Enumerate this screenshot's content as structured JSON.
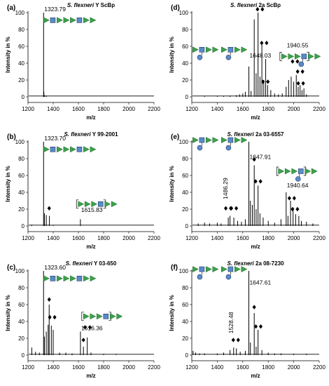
{
  "chart_data": [
    {
      "id": "a",
      "panel_label": "(a)",
      "title_italic": "S. flexneri",
      "title_rest": " Y ScBp",
      "type": "spectrum",
      "xlabel": "m/z",
      "ylabel": "Intensity in %",
      "xlim": [
        1200,
        2200
      ],
      "ylim": [
        0,
        100
      ],
      "xticks": [
        1200,
        1400,
        1600,
        1800,
        2000,
        2200
      ],
      "yticks": [
        0,
        20,
        40,
        60,
        80,
        100
      ],
      "peaks": [
        [
          1323.79,
          100
        ],
        [
          1326,
          6
        ],
        [
          1330,
          2
        ],
        [
          1345,
          1.5
        ]
      ],
      "labels": [
        {
          "text": "1323.79",
          "x": 1323.79,
          "y": 100
        }
      ],
      "diamonds": [],
      "glycans": [
        {
          "x": 1322,
          "y": 91,
          "units": 1,
          "kind": "Y"
        }
      ]
    },
    {
      "id": "b",
      "panel_label": "(b)",
      "title_italic": "S. flexneri",
      "title_rest": " Y 99-2001",
      "type": "spectrum",
      "xlabel": "m/z",
      "ylabel": "Intensity in %",
      "xlim": [
        1200,
        2200
      ],
      "ylim": [
        0,
        100
      ],
      "xticks": [
        1200,
        1400,
        1600,
        1800,
        2000,
        2200
      ],
      "yticks": [
        0,
        20,
        40,
        60,
        80,
        100
      ],
      "peaks": [
        [
          1323.7,
          100
        ],
        [
          1330,
          15
        ],
        [
          1345,
          13
        ],
        [
          1370,
          12
        ],
        [
          1615.83,
          8
        ],
        [
          1230,
          1.5
        ],
        [
          1400,
          1
        ]
      ],
      "labels": [
        {
          "text": "1323.70",
          "x": 1323.7,
          "y": 100
        },
        {
          "text": "1615.83",
          "x": 1615.83,
          "y": 15
        }
      ],
      "diamonds": [
        {
          "x": 1368,
          "y": 21,
          "n": 1
        }
      ],
      "glycans": [
        {
          "x": 1322,
          "y": 91,
          "units": 1,
          "kind": "Y"
        },
        {
          "x": 1568,
          "y": 26,
          "units": 1,
          "kind": "Ybr"
        }
      ]
    },
    {
      "id": "c",
      "panel_label": "(c)",
      "title_italic": "S. flexneri",
      "title_rest": " Y 03-650",
      "type": "spectrum",
      "xlabel": "m/z",
      "ylabel": "Intensity in %",
      "xlim": [
        1200,
        2200
      ],
      "ylim": [
        0,
        100
      ],
      "xticks": [
        1200,
        1400,
        1600,
        1800,
        2000,
        2200
      ],
      "yticks": [
        0,
        20,
        40,
        60,
        80,
        100
      ],
      "peaks": [
        [
          1323.6,
          100
        ],
        [
          1330,
          22
        ],
        [
          1345,
          28
        ],
        [
          1360,
          36
        ],
        [
          1368,
          60
        ],
        [
          1385,
          35
        ],
        [
          1400,
          30
        ],
        [
          1230,
          9
        ],
        [
          1260,
          4
        ],
        [
          1290,
          3
        ],
        [
          1450,
          3
        ],
        [
          1500,
          3
        ],
        [
          1550,
          2
        ],
        [
          1616.36,
          28
        ],
        [
          1640,
          10
        ],
        [
          1670,
          21
        ],
        [
          1700,
          3
        ],
        [
          1800,
          1.5
        ],
        [
          1900,
          1
        ]
      ],
      "labels": [
        {
          "text": "1323.60",
          "x": 1323.6,
          "y": 100
        },
        {
          "text": "1616.36",
          "x": 1616.36,
          "y": 28
        }
      ],
      "diamonds": [
        {
          "x": 1368,
          "y": 66,
          "n": 1
        },
        {
          "x": 1392,
          "y": 45,
          "n": 2
        },
        {
          "x": 1640,
          "y": 18,
          "n": 1
        },
        {
          "x": 1672,
          "y": 33,
          "n": 2
        }
      ],
      "glycans": [
        {
          "x": 1322,
          "y": 91,
          "units": 1,
          "kind": "Y"
        },
        {
          "x": 1610,
          "y": 46,
          "units": 1,
          "kind": "Ybr"
        }
      ]
    },
    {
      "id": "d",
      "panel_label": "(d)",
      "title_italic": "S. flexneri",
      "title_rest": " 2a ScBp",
      "type": "spectrum",
      "xlabel": "m/z",
      "ylabel": "Intensity in %",
      "xlim": [
        1200,
        2200
      ],
      "ylim": [
        0,
        100
      ],
      "xticks": [
        1200,
        1400,
        1600,
        1800,
        2000,
        2200
      ],
      "yticks": [
        0,
        20,
        40,
        60,
        80,
        100
      ],
      "peaks": [
        [
          1550,
          2
        ],
        [
          1575,
          3
        ],
        [
          1600,
          4
        ],
        [
          1620,
          6
        ],
        [
          1648.03,
          36
        ],
        [
          1665,
          7
        ],
        [
          1690,
          92
        ],
        [
          1705,
          28
        ],
        [
          1720,
          100
        ],
        [
          1735,
          24
        ],
        [
          1750,
          62
        ],
        [
          1765,
          20
        ],
        [
          1780,
          45
        ],
        [
          1795,
          14
        ],
        [
          1820,
          8
        ],
        [
          1850,
          4
        ],
        [
          1880,
          3
        ],
        [
          1910,
          4
        ],
        [
          1940.55,
          12
        ],
        [
          1960,
          20
        ],
        [
          1980,
          24
        ],
        [
          2000,
          18
        ],
        [
          2020,
          26
        ],
        [
          2035,
          12
        ],
        [
          2050,
          14
        ],
        [
          2065,
          8
        ],
        [
          2080,
          10
        ],
        [
          2100,
          3
        ],
        [
          1300,
          1
        ],
        [
          1400,
          1
        ],
        [
          1450,
          1
        ],
        [
          1500,
          1.5
        ]
      ],
      "labels": [
        {
          "text": "1648.03",
          "x": 1648.03,
          "y": 45
        },
        {
          "text": "1940.55",
          "x": 1940.55,
          "y": 57
        }
      ],
      "diamonds": [
        {
          "x": 1735,
          "y": 104,
          "n": 2
        },
        {
          "x": 1768,
          "y": 64,
          "n": 2
        },
        {
          "x": 1778,
          "y": 18,
          "n": 2
        },
        {
          "x": 2010,
          "y": 42,
          "n": 2
        },
        {
          "x": 2050,
          "y": 30,
          "n": 2
        },
        {
          "x": 2055,
          "y": 16,
          "n": 2
        }
      ],
      "glycans": [
        {
          "x": 1205,
          "y": 56,
          "units": 2,
          "kind": "2a"
        },
        {
          "x": 1875,
          "y": 48,
          "units": 1,
          "kind": "2abr"
        }
      ]
    },
    {
      "id": "e",
      "panel_label": "(e)",
      "title_italic": "S. flexneri",
      "title_rest": " 2a 03-6557",
      "type": "spectrum",
      "xlabel": "m/z",
      "ylabel": "Intensity in %",
      "xlim": [
        1200,
        2200
      ],
      "ylim": [
        0,
        100
      ],
      "xticks": [
        1200,
        1400,
        1600,
        1800,
        2000,
        2200
      ],
      "yticks": [
        0,
        20,
        40,
        60,
        80,
        100
      ],
      "peaks": [
        [
          1250,
          3
        ],
        [
          1300,
          4
        ],
        [
          1340,
          3
        ],
        [
          1400,
          4
        ],
        [
          1430,
          3
        ],
        [
          1486.29,
          10
        ],
        [
          1500,
          12
        ],
        [
          1530,
          10
        ],
        [
          1560,
          6
        ],
        [
          1590,
          5
        ],
        [
          1620,
          8
        ],
        [
          1647.91,
          100
        ],
        [
          1660,
          30
        ],
        [
          1675,
          25
        ],
        [
          1690,
          72
        ],
        [
          1705,
          20
        ],
        [
          1720,
          48
        ],
        [
          1735,
          15
        ],
        [
          1760,
          10
        ],
        [
          1800,
          6
        ],
        [
          1850,
          4
        ],
        [
          1900,
          8
        ],
        [
          1940.64,
          40
        ],
        [
          1955,
          12
        ],
        [
          1975,
          30
        ],
        [
          1995,
          22
        ],
        [
          2015,
          14
        ],
        [
          2040,
          12
        ],
        [
          2060,
          6
        ],
        [
          2100,
          5
        ],
        [
          2150,
          3
        ]
      ],
      "labels": [
        {
          "text": "1647.91",
          "x": 1647.91,
          "y": 78
        },
        {
          "text": "1940.64",
          "x": 1940.64,
          "y": 44
        },
        {
          "text": "1486.29",
          "x": 1486.29,
          "y": 30,
          "rotate": true
        }
      ],
      "diamonds": [
        {
          "x": 1486,
          "y": 21,
          "n": 2
        },
        {
          "x": 1530,
          "y": 21,
          "n": 2
        },
        {
          "x": 1690,
          "y": 79,
          "n": 1
        },
        {
          "x": 1720,
          "y": 53,
          "n": 2
        },
        {
          "x": 1985,
          "y": 33,
          "n": 2
        },
        {
          "x": 2010,
          "y": 20,
          "n": 2
        }
      ],
      "glycans": [
        {
          "x": 1205,
          "y": 102,
          "units": 2,
          "kind": "2a"
        },
        {
          "x": 1850,
          "y": 65,
          "units": 1,
          "kind": "2abr"
        }
      ]
    },
    {
      "id": "f",
      "panel_label": "(f)",
      "title_italic": "S. flexneri",
      "title_rest": " 2a 08-7230",
      "type": "spectrum",
      "xlabel": "m/z",
      "ylabel": "Intensity in %",
      "xlim": [
        1200,
        2200
      ],
      "ylim": [
        0,
        100
      ],
      "xticks": [
        1200,
        1400,
        1600,
        1800,
        2000,
        2200
      ],
      "yticks": [
        0,
        20,
        40,
        60,
        80,
        100
      ],
      "peaks": [
        [
          1210,
          5
        ],
        [
          1230,
          3
        ],
        [
          1260,
          2
        ],
        [
          1300,
          2
        ],
        [
          1400,
          2
        ],
        [
          1450,
          3
        ],
        [
          1500,
          6
        ],
        [
          1528.48,
          9
        ],
        [
          1550,
          8
        ],
        [
          1580,
          4
        ],
        [
          1620,
          5
        ],
        [
          1647.61,
          100
        ],
        [
          1660,
          15
        ],
        [
          1690,
          50
        ],
        [
          1705,
          10
        ],
        [
          1720,
          30
        ],
        [
          1750,
          6
        ],
        [
          1800,
          3
        ],
        [
          1850,
          2
        ],
        [
          1900,
          2
        ],
        [
          2000,
          1.5
        ],
        [
          2100,
          1.5
        ]
      ],
      "labels": [
        {
          "text": "1647.61",
          "x": 1647.61,
          "y": 82
        },
        {
          "text": "1528.48",
          "x": 1528.48,
          "y": 24,
          "rotate": true
        }
      ],
      "diamonds": [
        {
          "x": 1545,
          "y": 18,
          "n": 2
        },
        {
          "x": 1690,
          "y": 57,
          "n": 1
        },
        {
          "x": 1722,
          "y": 34,
          "n": 2
        }
      ],
      "glycans": [
        {
          "x": 1205,
          "y": 102,
          "units": 2,
          "kind": "2a"
        }
      ]
    }
  ]
}
